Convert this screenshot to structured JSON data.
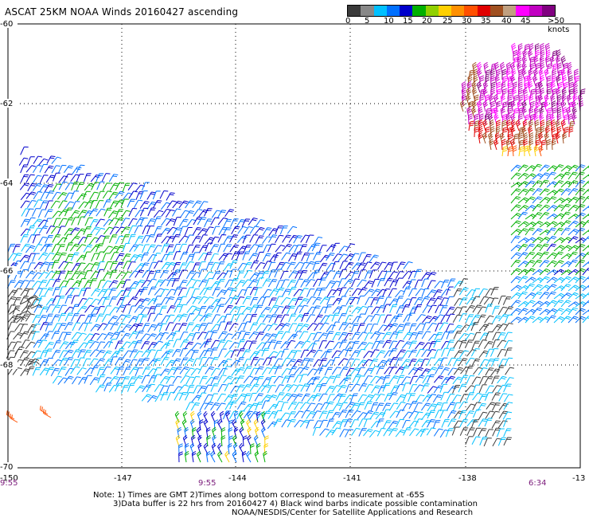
{
  "title": "ASCAT 25KM NOAA Winds 20160427 ascending",
  "legend": {
    "colors": [
      "#3a3a3a",
      "#888888",
      "#00c0ff",
      "#0070ff",
      "#0000cc",
      "#00b000",
      "#90d000",
      "#ffd000",
      "#ff9000",
      "#ff5000",
      "#e00000",
      "#a05020",
      "#c0a080",
      "#ff00ff",
      "#c000c0",
      "#800080"
    ],
    "labels": [
      "0",
      "5",
      "10",
      "15",
      "20",
      "25",
      "30",
      "35",
      "40",
      "45",
      ">50 knots"
    ]
  },
  "axes": {
    "lat_labels": [
      "-60",
      "-62",
      "-64",
      "-66",
      "-68",
      "-70"
    ],
    "lon_labels": [
      "-150",
      "-147",
      "-144",
      "-141",
      "-138",
      "-13"
    ]
  },
  "pass_times": [
    "9:55",
    "9:55",
    "6:34"
  ],
  "notes": [
    "Note: 1) Times are GMT 2)Times along bottom correspond to measurement at -65S",
    "3)Data buffer is 22 hrs from 20160427 4) Black wind barbs indicate possible contamination",
    "NOAA/NESDIS/Center for Satellite Applications and Research"
  ]
}
